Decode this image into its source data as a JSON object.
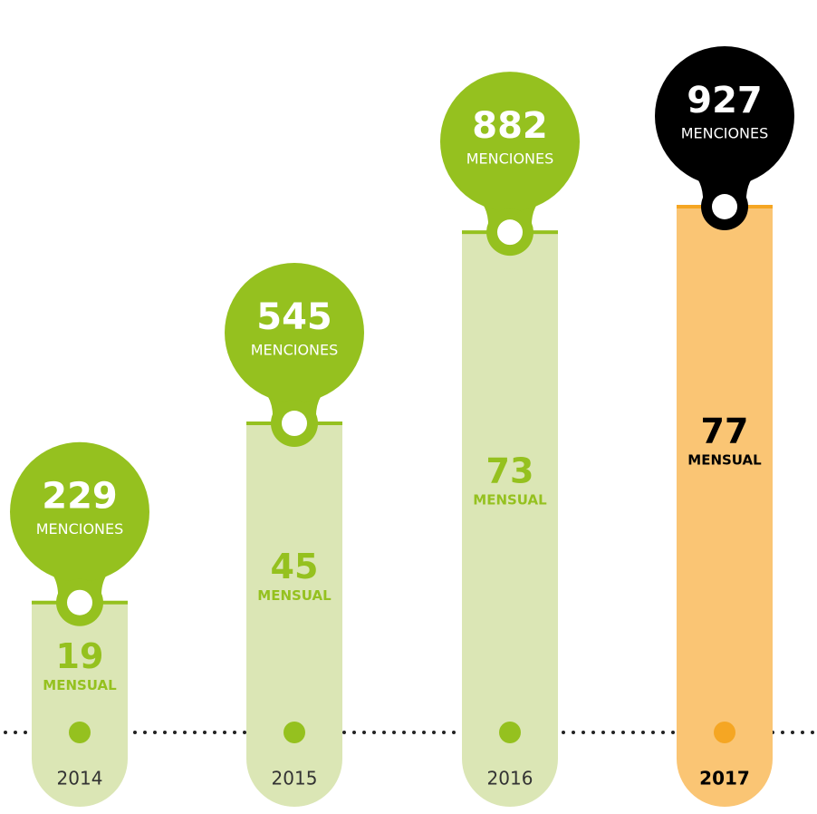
{
  "chart_data": {
    "type": "bar",
    "categories": [
      "2014",
      "2015",
      "2016",
      "2017"
    ],
    "values": [
      229,
      545,
      882,
      927
    ],
    "value_unit": "MENCIONES",
    "monthly": [
      19,
      45,
      73,
      77
    ],
    "monthly_unit": "MENSUAL",
    "color": "#dbe6b5",
    "accent_color": "#95c11f",
    "highlight_index": 3,
    "highlight_color": "#fac574",
    "highlight_accent": "#f5a623",
    "highlight_bubble": "#000000"
  }
}
